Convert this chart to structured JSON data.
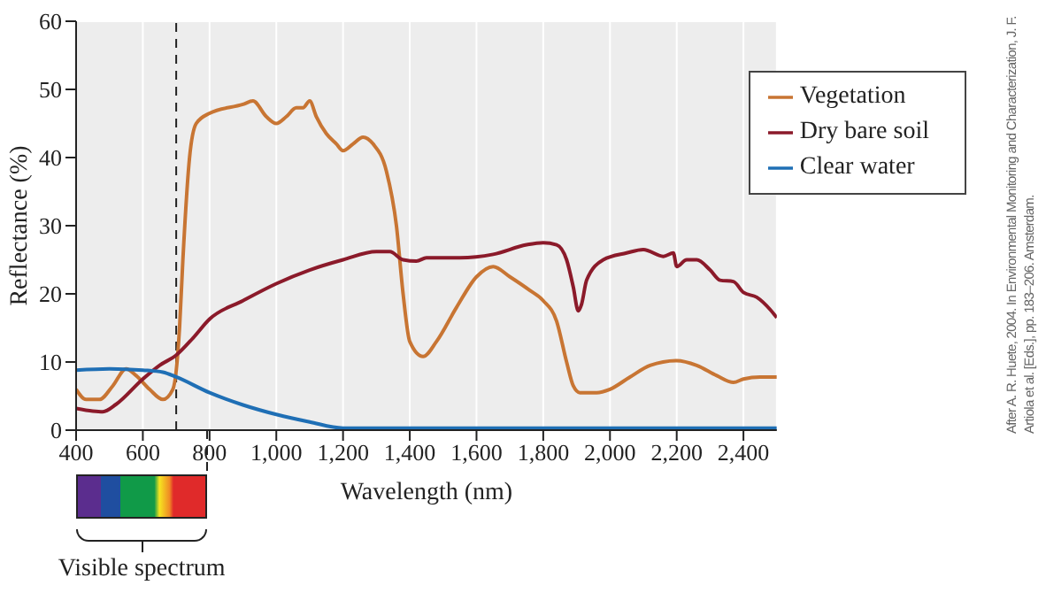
{
  "chart_data": {
    "type": "line",
    "xlabel": "Wavelength (nm)",
    "ylabel": "Reflectance (%)",
    "xlim": [
      400,
      2500
    ],
    "ylim": [
      0,
      60
    ],
    "xticks": [
      400,
      600,
      800,
      {
        "value": 1000,
        "label": "1,000"
      },
      {
        "value": 1200,
        "label": "1,200"
      },
      {
        "value": 1400,
        "label": "1,400"
      },
      {
        "value": 1600,
        "label": "1,600"
      },
      {
        "value": 1800,
        "label": "1,800"
      },
      {
        "value": 2000,
        "label": "2,000"
      },
      {
        "value": 2200,
        "label": "2,200"
      },
      {
        "value": 2400,
        "label": "2,400"
      }
    ],
    "yticks": [
      0,
      10,
      20,
      30,
      40,
      50,
      60
    ],
    "grid": true,
    "legend": "top right",
    "marker": "none",
    "line_style": "solid",
    "ref_lines": [
      {
        "axis": "x",
        "value": 700,
        "color": "#222222",
        "line_style": "dashed"
      }
    ],
    "annotations": [
      "Visible spectrum",
      "After A. R. Huete, 2004. In Environmental Monitoring and Characterization, J. F. Artiola et al. [Eds.], pp. 183–206. Amsterdam."
    ],
    "series": [
      {
        "name": "Vegetation",
        "color": "#c87533",
        "x": [
          400,
          430,
          470,
          510,
          550,
          580,
          620,
          660,
          690,
          710,
          720,
          740,
          760,
          800,
          900,
          930,
          970,
          1000,
          1030,
          1060,
          1080,
          1100,
          1120,
          1150,
          1180,
          1200,
          1230,
          1260,
          1290,
          1330,
          1360,
          1380,
          1400,
          1440,
          1480,
          1540,
          1600,
          1650,
          1700,
          1760,
          1800,
          1840,
          1870,
          1890,
          1910,
          1960,
          2000,
          2060,
          2120,
          2200,
          2260,
          2320,
          2370,
          2400,
          2450,
          2500
        ],
        "values": [
          6,
          4.5,
          4.5,
          6.5,
          9,
          8,
          6,
          4.5,
          6,
          15,
          25,
          40,
          45,
          46.5,
          47.8,
          48.3,
          46,
          45,
          46,
          47.3,
          47.3,
          48.3,
          46,
          43.5,
          42,
          41,
          42,
          43,
          42,
          38,
          30,
          20,
          13,
          10.8,
          13,
          18,
          22.5,
          24,
          22.5,
          20.5,
          19,
          16,
          10,
          6.5,
          5.5,
          5.5,
          6,
          7.8,
          9.5,
          10.2,
          9.5,
          8,
          7,
          7.5,
          7.8,
          7.8
        ]
      },
      {
        "name": "Dry bare soil",
        "color": "#8b1a2a",
        "x": [
          400,
          450,
          480,
          520,
          600,
          650,
          700,
          750,
          800,
          900,
          1000,
          1100,
          1200,
          1300,
          1340,
          1380,
          1420,
          1450,
          1550,
          1650,
          1750,
          1800,
          1840,
          1870,
          1890,
          1905,
          1915,
          1930,
          1980,
          2050,
          2100,
          2160,
          2190,
          2200,
          2230,
          2260,
          2300,
          2330,
          2370,
          2400,
          2440,
          2480,
          2500
        ],
        "values": [
          3.2,
          2.8,
          2.7,
          3.8,
          7.5,
          9.5,
          11,
          13.5,
          16.3,
          19,
          21.5,
          23.5,
          25,
          26.2,
          26.2,
          25,
          24.8,
          25.3,
          25.3,
          25.8,
          27.2,
          27.5,
          27.2,
          25,
          21,
          17.5,
          18.5,
          22,
          25,
          26,
          26.5,
          25.5,
          26,
          24,
          25,
          25,
          23.5,
          22,
          21.8,
          20.2,
          19.5,
          17.7,
          16.5
        ]
      },
      {
        "name": "Clear water",
        "color": "#1f6fb5",
        "x": [
          400,
          500,
          600,
          660,
          700,
          800,
          900,
          1000,
          1100,
          1200,
          1300,
          1600,
          2000,
          2500
        ],
        "values": [
          8.8,
          9,
          8.8,
          8.5,
          7.8,
          5.5,
          3.7,
          2.3,
          1.2,
          0.3,
          0.3,
          0.3,
          0.3,
          0.3
        ]
      }
    ]
  }
}
